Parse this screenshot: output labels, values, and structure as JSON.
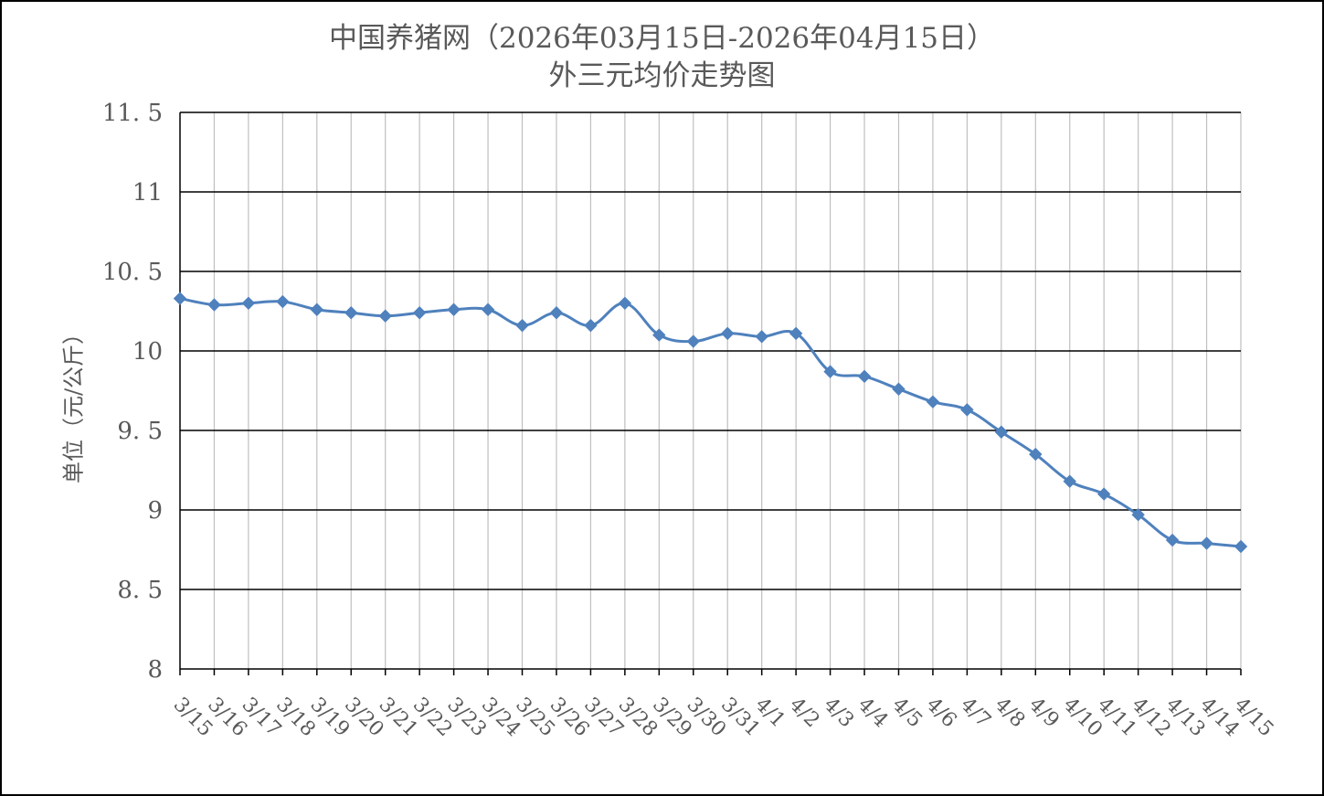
{
  "chart_data": {
    "type": "line",
    "title": "中国养猪网（2026年03月15日-2026年04月15日）",
    "subtitle": "外三元均价走势图",
    "xlabel": "",
    "ylabel": "单位（元/公斤）",
    "ylim": [
      8,
      11.5
    ],
    "yticks": [
      "8",
      "8.5",
      "9",
      "9.5",
      "10",
      "10.5",
      "11",
      "11.5"
    ],
    "categories": [
      "3/15",
      "3/16",
      "3/17",
      "3/18",
      "3/19",
      "3/20",
      "3/21",
      "3/22",
      "3/23",
      "3/24",
      "3/25",
      "3/26",
      "3/27",
      "3/28",
      "3/29",
      "3/30",
      "3/31",
      "4/1",
      "4/2",
      "4/3",
      "4/4",
      "4/5",
      "4/6",
      "4/7",
      "4/8",
      "4/9",
      "4/10",
      "4/11",
      "4/12",
      "4/13",
      "4/14",
      "4/15"
    ],
    "series": [
      {
        "values": [
          10.33,
          10.29,
          10.3,
          10.31,
          10.26,
          10.24,
          10.22,
          10.24,
          10.26,
          10.26,
          10.16,
          10.24,
          10.16,
          10.3,
          10.1,
          10.06,
          10.11,
          10.09,
          10.11,
          9.87,
          9.84,
          9.76,
          9.68,
          9.63,
          9.49,
          9.35,
          9.18,
          9.1,
          8.97,
          8.81,
          8.79,
          8.77
        ]
      }
    ],
    "grid": true,
    "legend": "none",
    "colors": {
      "line": "#4f81bd",
      "marker": "#4f81bd",
      "grid_horizontal": "#000000",
      "grid_vertical": "#bfbfbf",
      "text": "#595959"
    }
  }
}
